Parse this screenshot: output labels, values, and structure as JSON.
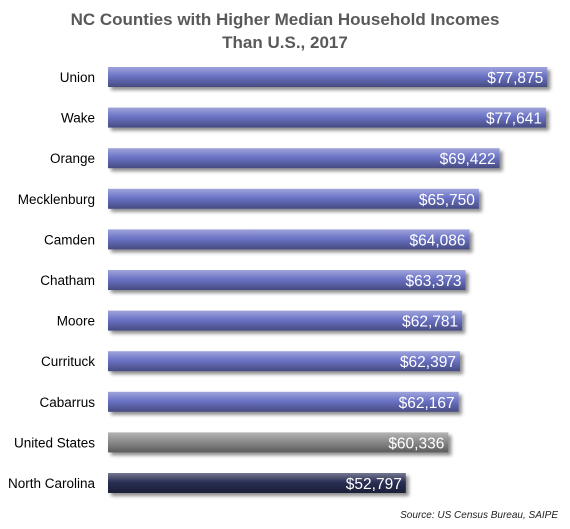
{
  "chart_data": {
    "type": "bar",
    "orientation": "horizontal",
    "title_line1": "NC Counties with Higher Median Household Incomes",
    "title_line2": "Than U.S., 2017",
    "categories": [
      "Union",
      "Wake",
      "Orange",
      "Mecklenburg",
      "Camden",
      "Chatham",
      "Moore",
      "Currituck",
      "Cabarrus",
      "United States",
      "North Carolina"
    ],
    "values": [
      77875,
      77641,
      69422,
      65750,
      64086,
      63373,
      62781,
      62397,
      62167,
      60336,
      52797
    ],
    "value_labels": [
      "$77,875",
      "$77,641",
      "$69,422",
      "$65,750",
      "$64,086",
      "$63,373",
      "$62,781",
      "$62,397",
      "$62,167",
      "$60,336",
      "$52,797"
    ],
    "bar_colors": [
      "#6b73c6",
      "#6b73c6",
      "#6b73c6",
      "#6b73c6",
      "#6b73c6",
      "#6b73c6",
      "#6b73c6",
      "#6b73c6",
      "#6b73c6",
      "#8c8c8c",
      "#2a2f55"
    ],
    "xlim": [
      0,
      78000
    ],
    "grid": false,
    "source": "Source: US Census Bureau, SAIPE"
  }
}
